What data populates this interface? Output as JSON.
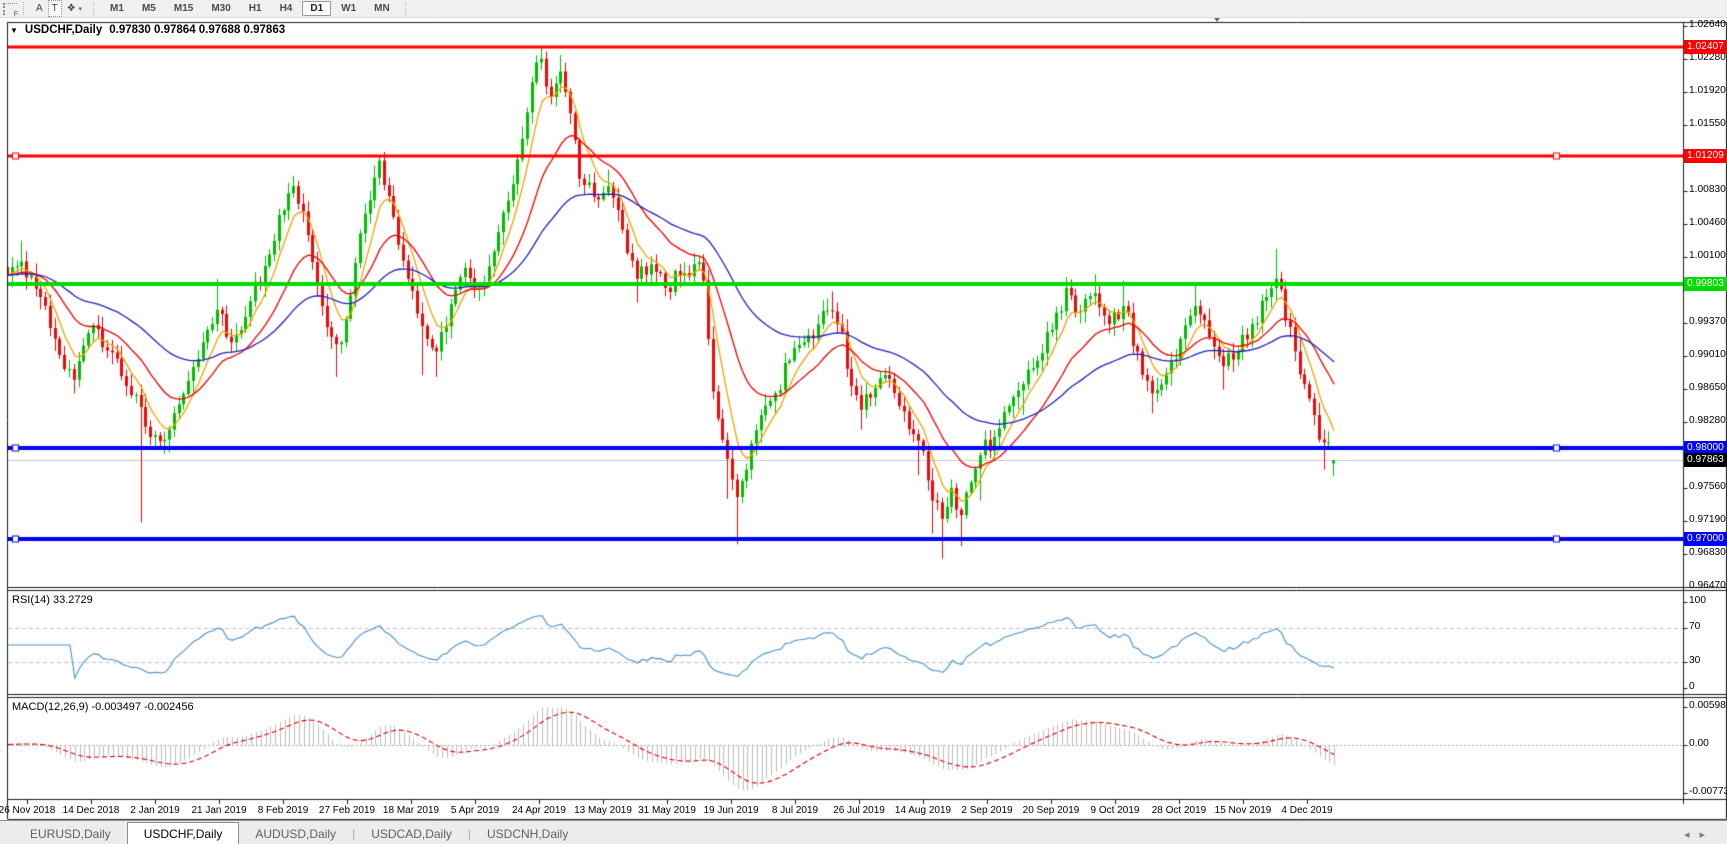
{
  "window": {
    "dropdown_icon": "▼",
    "title_symbol": "USDCHF,Daily",
    "title_ohlc": "0.97830 0.97864 0.97688 0.97863"
  },
  "toolbar": {
    "grid_icon_letter": "F",
    "text_tool_label": "A",
    "type_tool_label": "T",
    "style_tool_glyph": "❖",
    "style_caret": "▾",
    "timeframes": [
      {
        "label": "M1",
        "active": false
      },
      {
        "label": "M5",
        "active": false
      },
      {
        "label": "M15",
        "active": false
      },
      {
        "label": "M30",
        "active": false
      },
      {
        "label": "H1",
        "active": false
      },
      {
        "label": "H4",
        "active": false
      },
      {
        "label": "D1",
        "active": true
      },
      {
        "label": "W1",
        "active": false
      },
      {
        "label": "MN",
        "active": false
      }
    ]
  },
  "chart_data": {
    "type": "candlestick",
    "symbol": "USDCHF",
    "timeframe": "Daily",
    "last_bar": {
      "open": 0.9783,
      "high": 0.97864,
      "low": 0.97688,
      "close": 0.97863
    },
    "bar_count": 279,
    "up_color": "#00be00",
    "down_color": "#ee0a0a",
    "y_axis": {
      "top": 1.0264,
      "bottom": 0.9647,
      "ticks": [
        "1.02640",
        "1.02280",
        "1.01920",
        "1.01550",
        "1.01190",
        "1.00830",
        "1.00460",
        "1.00100",
        "0.99740",
        "0.99370",
        "0.99010",
        "0.98650",
        "0.98280",
        "0.97920",
        "0.97560",
        "0.97190",
        "0.96830",
        "0.96470"
      ]
    },
    "x_labels": [
      "26 Nov 2018",
      "14 Dec 2018",
      "2 Jan 2019",
      "21 Jan 2019",
      "8 Feb 2019",
      "27 Feb 2019",
      "18 Mar 2019",
      "5 Apr 2019",
      "24 Apr 2019",
      "13 May 2019",
      "31 May 2019",
      "19 Jun 2019",
      "8 Jul 2019",
      "26 Jul 2019",
      "14 Aug 2019",
      "2 Sep 2019",
      "20 Sep 2019",
      "9 Oct 2019",
      "28 Oct 2019",
      "15 Nov 2019",
      "4 Dec 2019"
    ],
    "anchors": [
      [
        0,
        0.999
      ],
      [
        3,
        1.0005,
        null,
        1.0028
      ],
      [
        6,
        0.9975
      ],
      [
        10,
        0.992
      ],
      [
        14,
        0.9875,
        0.986
      ],
      [
        18,
        0.9935
      ],
      [
        22,
        0.9905
      ],
      [
        25,
        0.9868
      ],
      [
        28,
        0.9845,
        0.9718
      ],
      [
        30,
        0.9812
      ],
      [
        34,
        0.982,
        0.9806
      ],
      [
        36,
        0.9848
      ],
      [
        40,
        0.9898
      ],
      [
        44,
        0.9952,
        null,
        0.9986
      ],
      [
        47,
        0.9916
      ],
      [
        50,
        0.9944
      ],
      [
        54,
        1.0
      ],
      [
        57,
        1.0056
      ],
      [
        60,
        1.0088,
        null,
        1.0094
      ],
      [
        63,
        1.0034
      ],
      [
        66,
        0.9956
      ],
      [
        69,
        0.9914,
        0.9878
      ],
      [
        71,
        0.9942
      ],
      [
        74,
        1.0036
      ],
      [
        78,
        1.0116,
        null,
        1.0122
      ],
      [
        81,
        1.0054
      ],
      [
        84,
        0.9986
      ],
      [
        87,
        0.9934,
        0.988
      ],
      [
        90,
        0.9906,
        0.9878
      ],
      [
        93,
        0.9958
      ],
      [
        96,
        0.9998
      ],
      [
        99,
        0.9976
      ],
      [
        102,
        1.0016
      ],
      [
        105,
        1.0072
      ],
      [
        108,
        1.014
      ],
      [
        110,
        1.0202
      ],
      [
        112,
        1.0228,
        null,
        1.024
      ],
      [
        114,
        1.0186
      ],
      [
        116,
        1.0214,
        null,
        1.0232
      ],
      [
        118,
        1.0168
      ],
      [
        120,
        1.0096
      ],
      [
        123,
        1.0076
      ],
      [
        126,
        1.0088,
        null,
        1.0106
      ],
      [
        129,
        1.004
      ],
      [
        132,
        0.9986,
        0.996
      ],
      [
        135,
        1.0002
      ],
      [
        138,
        0.9976
      ],
      [
        141,
        0.999
      ],
      [
        144,
        1.0002,
        null,
        1.001
      ],
      [
        146,
        0.9984
      ],
      [
        148,
        0.9862
      ],
      [
        151,
        0.9788,
        0.9744
      ],
      [
        153,
        0.9746,
        0.9694
      ],
      [
        155,
        0.9776
      ],
      [
        158,
        0.9836
      ],
      [
        161,
        0.986
      ],
      [
        164,
        0.9896
      ],
      [
        167,
        0.9916
      ],
      [
        170,
        0.9936
      ],
      [
        173,
        0.995,
        null,
        0.9972
      ],
      [
        175,
        0.9928
      ],
      [
        177,
        0.9868
      ],
      [
        179,
        0.9842,
        0.982
      ],
      [
        182,
        0.9866
      ],
      [
        185,
        0.9876
      ],
      [
        188,
        0.984
      ],
      [
        191,
        0.9808,
        0.977
      ],
      [
        194,
        0.9742,
        0.9706
      ],
      [
        196,
        0.9722,
        0.9678
      ],
      [
        198,
        0.9756
      ],
      [
        200,
        0.9726,
        0.9692
      ],
      [
        202,
        0.9762
      ],
      [
        204,
        0.9792,
        0.9742
      ],
      [
        207,
        0.9812
      ],
      [
        210,
        0.9846
      ],
      [
        213,
        0.987,
        0.9836
      ],
      [
        216,
        0.9896
      ],
      [
        219,
        0.993
      ],
      [
        222,
        0.9976,
        null,
        0.9988
      ],
      [
        225,
        0.995
      ],
      [
        228,
        0.997,
        null,
        0.9991
      ],
      [
        231,
        0.9936
      ],
      [
        234,
        0.9956,
        null,
        0.9984
      ],
      [
        237,
        0.9906
      ],
      [
        240,
        0.986,
        0.9838
      ],
      [
        243,
        0.9882
      ],
      [
        246,
        0.992
      ],
      [
        249,
        0.9956,
        null,
        0.9978
      ],
      [
        252,
        0.9922
      ],
      [
        255,
        0.989,
        0.9864
      ],
      [
        258,
        0.9906
      ],
      [
        261,
        0.9936
      ],
      [
        264,
        0.9966
      ],
      [
        266,
        0.9986,
        null,
        1.0019
      ],
      [
        268,
        0.994
      ],
      [
        270,
        0.9906
      ],
      [
        272,
        0.987
      ],
      [
        274,
        0.9836
      ],
      [
        276,
        0.9806,
        0.9776
      ],
      [
        278,
        0.97863,
        0.97688,
        0.97864
      ]
    ],
    "horizontal_lines": [
      {
        "price": 1.02407,
        "label": "1.02407",
        "color": "#ff0000",
        "width": 3,
        "handles": false
      },
      {
        "price": 1.01209,
        "label": "1.01209",
        "color": "#ff0000",
        "width": 3,
        "handles": true
      },
      {
        "price": 0.99803,
        "label": "0.99803",
        "color": "#00dc00",
        "width": 4,
        "handles": false
      },
      {
        "price": 0.98,
        "label": "0.98000",
        "color": "#0000ff",
        "width": 4,
        "handles": true
      },
      {
        "price": 0.97,
        "label": "0.97000",
        "color": "#0000ff",
        "width": 4,
        "handles": true
      }
    ],
    "current_price": {
      "price": 0.97863,
      "label": "0.97863",
      "line_color": "#c8c8c8",
      "badge_bg": "#000000"
    },
    "moving_averages": [
      {
        "name": "fast-ma",
        "period": 6,
        "color": "#f0a400"
      },
      {
        "name": "mid-ma",
        "period": 18,
        "color": "#f40000"
      },
      {
        "name": "slow-ma",
        "period": 45,
        "color": "#2121be"
      }
    ],
    "rsi": {
      "label": "RSI(14) 33.2729",
      "period": 14,
      "value": 33.2729,
      "scale_ticks": [
        "100",
        "70",
        "30",
        "0"
      ],
      "scale_values": [
        100,
        70,
        30,
        0
      ],
      "dashed_levels": [
        70,
        30
      ],
      "line_color": "#4593d2"
    },
    "macd": {
      "label": "MACD(12,26,9) -0.003497 -0.002456",
      "fast": 12,
      "slow": 26,
      "signal": 9,
      "main_value": -0.003497,
      "signal_value": -0.002456,
      "axis_max": 0.005986,
      "axis_min": -0.007737,
      "scale_ticks": [
        "0.005986",
        "0.00",
        "-0.007737"
      ],
      "scale_values": [
        0.005986,
        0.0,
        -0.007737
      ],
      "histogram_color": "#bdbdbd",
      "signal_color": "#e00000"
    }
  },
  "tabs": {
    "items": [
      {
        "label": "EURUSD,Daily",
        "active": false
      },
      {
        "label": "USDCHF,Daily",
        "active": true
      },
      {
        "label": "AUDUSD,Daily",
        "active": false
      },
      {
        "label": "USDCAD,Daily",
        "active": false
      },
      {
        "label": "USDCNH,Daily",
        "active": false
      }
    ],
    "nav_left": "◂",
    "nav_right": "▸"
  }
}
